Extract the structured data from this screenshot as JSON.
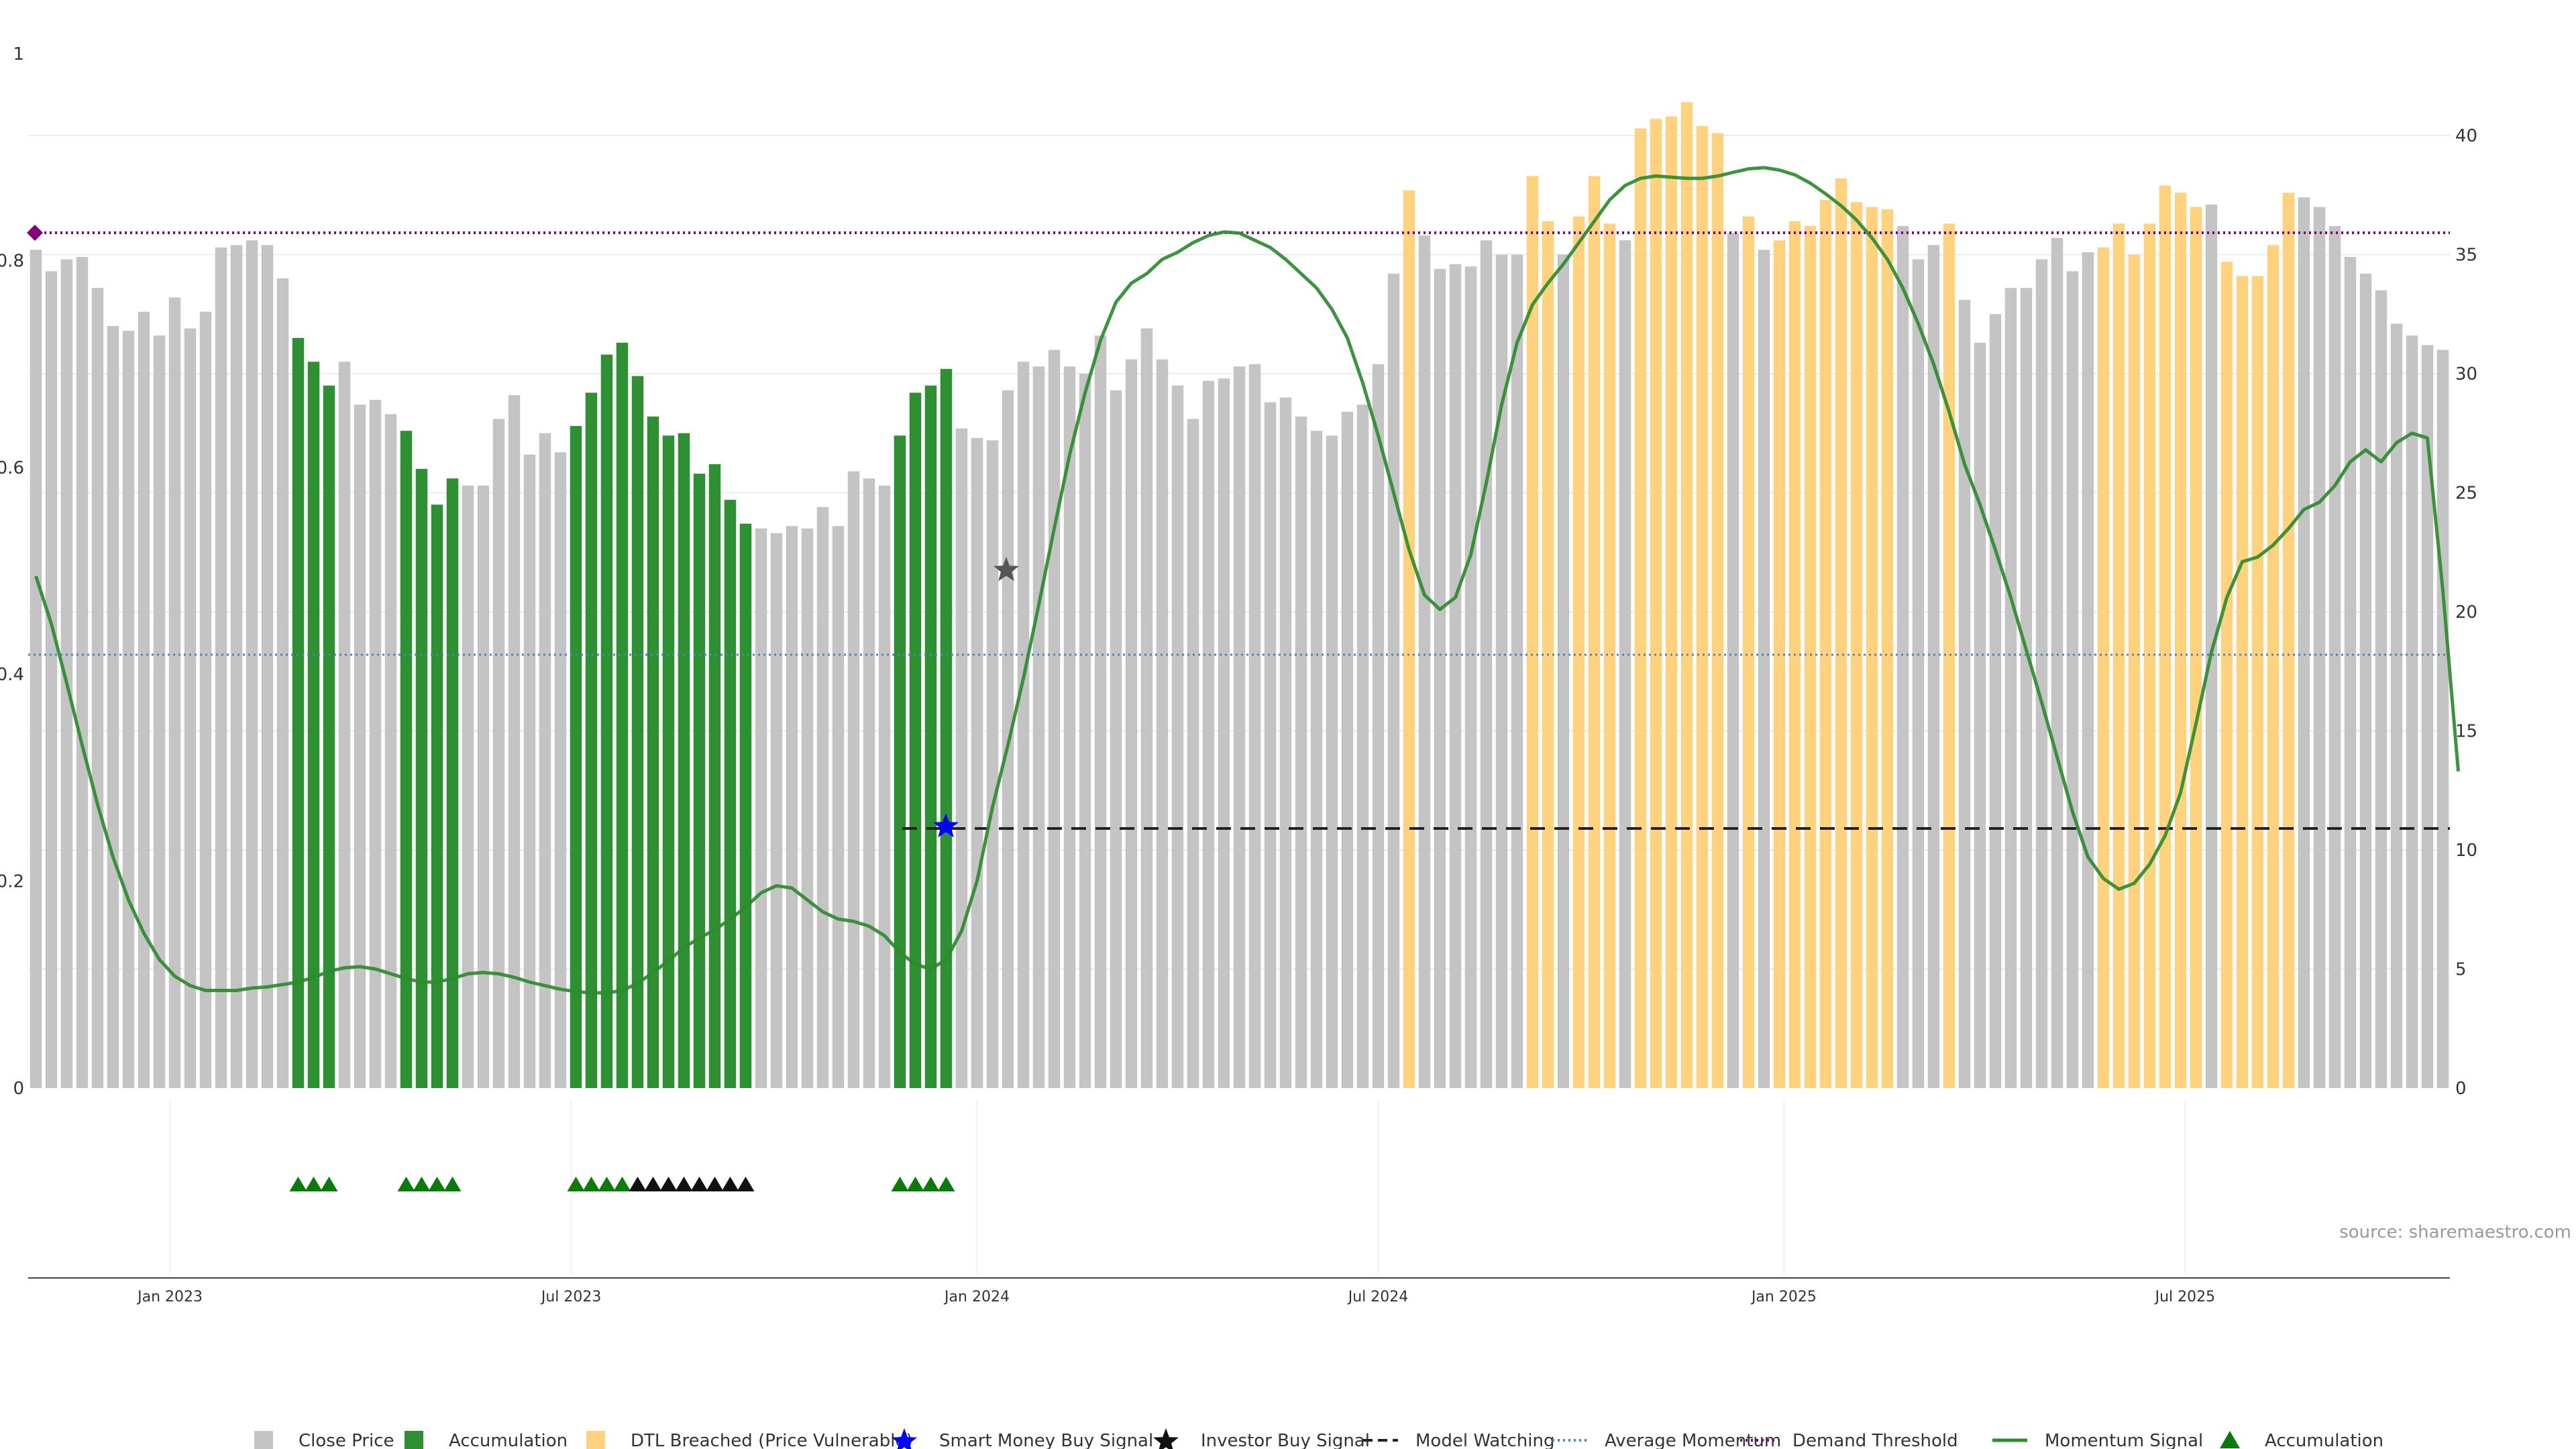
{
  "source_label": "source: sharemaestro.com",
  "colors": {
    "close": "#c4c4c4",
    "accumulation": "#2e9032",
    "dtl": "#ffd280",
    "smart": "#0000ff",
    "investor": "#111111",
    "watching": "#222222",
    "avg_momentum": "#4a86b8",
    "demand": "#800080",
    "momentum": "#2e8b2e",
    "acc_marker": "#0a7a0a"
  },
  "legend": [
    {
      "key": "close",
      "label": "Close Price",
      "marker": "square"
    },
    {
      "key": "accumulation",
      "label": "Accumulation",
      "marker": "square"
    },
    {
      "key": "dtl",
      "label": "DTL Breached (Price Vulnerable)",
      "marker": "square"
    },
    {
      "key": "smart",
      "label": "Smart Money Buy Signal",
      "marker": "star"
    },
    {
      "key": "investor",
      "label": "Investor Buy Signal",
      "marker": "star"
    },
    {
      "key": "watching",
      "label": "Model Watching",
      "marker": "dash"
    },
    {
      "key": "avg_momentum",
      "label": "Average Momentum",
      "marker": "dotted"
    },
    {
      "key": "demand",
      "label": "Demand Threshold",
      "marker": "dotted"
    },
    {
      "key": "momentum",
      "label": "Momentum Signal",
      "marker": "line"
    },
    {
      "key": "acc_marker",
      "label": "Accumulation",
      "marker": "triangle"
    }
  ],
  "chart_data": {
    "type": "bar",
    "left_axis": {
      "ticks": [
        "0",
        "0.2",
        "0.4",
        "0.6",
        "0.8",
        "1"
      ],
      "range": [
        0,
        1
      ]
    },
    "right_axis": {
      "ticks": [
        "0",
        "5",
        "10",
        "15",
        "20",
        "25",
        "30",
        "35",
        "40"
      ],
      "range": [
        0,
        43.6
      ]
    },
    "x_ticks": [
      "Jan 2023",
      "Jul 2023",
      "Jan 2024",
      "Jul 2024",
      "Jan 2025",
      "Jul 2025"
    ],
    "x_tick_index": [
      8.7,
      34.7,
      61.0,
      87.0,
      113.3,
      139.3
    ],
    "close_values": [
      35.2,
      34.3,
      34.8,
      34.9,
      33.6,
      32.0,
      31.8,
      32.6,
      31.6,
      33.2,
      31.9,
      32.6,
      35.3,
      35.4,
      35.6,
      35.4,
      34.0,
      31.5,
      30.5,
      29.5,
      30.5,
      28.7,
      28.9,
      28.3,
      27.6,
      26.0,
      24.5,
      25.6,
      25.3,
      25.3,
      28.1,
      29.1,
      26.6,
      27.5,
      26.7,
      27.8,
      29.2,
      30.8,
      31.3,
      29.9,
      28.2,
      27.4,
      27.5,
      25.8,
      26.2,
      24.7,
      23.7,
      23.5,
      23.3,
      23.6,
      23.5,
      24.4,
      23.6,
      25.9,
      25.6,
      25.3,
      27.4,
      29.2,
      29.5,
      30.2,
      27.7,
      27.3,
      27.2,
      29.3,
      30.5,
      30.3,
      31.0,
      30.3,
      30.0,
      31.6,
      29.3,
      30.6,
      31.9,
      30.6,
      29.5,
      28.1,
      29.7,
      29.8,
      30.3,
      30.4,
      28.8,
      29.0,
      28.2,
      27.6,
      27.4,
      28.4,
      28.7,
      30.4,
      34.2,
      37.7,
      35.8,
      34.4,
      34.6,
      34.5,
      35.6,
      35.0,
      35.0,
      38.3,
      36.4,
      35.0,
      36.6,
      38.3,
      36.3,
      35.6,
      40.3,
      40.7,
      40.8,
      41.4,
      40.4,
      40.1,
      35.9,
      36.6,
      35.2,
      35.6,
      36.4,
      36.2,
      37.3,
      38.2,
      37.2,
      37.0,
      36.9,
      36.2,
      34.8,
      35.4,
      36.3,
      33.1,
      31.3,
      32.5,
      33.6,
      33.6,
      34.8,
      35.7,
      34.3,
      35.1,
      35.3,
      36.3,
      35.0,
      36.3,
      37.9,
      37.6,
      37.0,
      37.1,
      34.7,
      34.1,
      34.1,
      35.4,
      37.6,
      37.4,
      37.0,
      36.2,
      34.9,
      34.2,
      33.5,
      32.1,
      31.6,
      31.2,
      31.0
    ],
    "accumulation_index": [
      17,
      18,
      19,
      24,
      25,
      26,
      27,
      35,
      36,
      37,
      38,
      39,
      40,
      41,
      42,
      43,
      44,
      45,
      46,
      56,
      57,
      58,
      59
    ],
    "dtl_index": [
      89,
      97,
      98,
      100,
      101,
      102,
      104,
      105,
      106,
      107,
      108,
      109,
      111,
      113,
      114,
      115,
      116,
      117,
      118,
      119,
      120,
      124,
      134,
      135,
      136,
      137,
      138,
      139,
      140,
      142,
      143,
      144,
      145,
      146
    ],
    "momentum_values": [
      21.5,
      19.5,
      17.0,
      14.4,
      11.9,
      9.7,
      7.9,
      6.5,
      5.4,
      4.7,
      4.3,
      4.1,
      4.1,
      4.1,
      4.2,
      4.25,
      4.35,
      4.45,
      4.65,
      4.9,
      5.05,
      5.1,
      5.0,
      4.8,
      4.6,
      4.45,
      4.45,
      4.6,
      4.8,
      4.85,
      4.8,
      4.65,
      4.45,
      4.3,
      4.15,
      4.05,
      4.0,
      4.0,
      4.1,
      4.4,
      4.85,
      5.35,
      5.9,
      6.3,
      6.65,
      7.1,
      7.6,
      8.2,
      8.5,
      8.4,
      7.9,
      7.4,
      7.1,
      7.0,
      6.8,
      6.4,
      5.7,
      5.2,
      5.0,
      5.4,
      6.6,
      8.7,
      11.8,
      14.4,
      17.2,
      20.3,
      23.5,
      26.6,
      29.2,
      31.4,
      33.0,
      33.8,
      34.2,
      34.8,
      35.1,
      35.5,
      35.8,
      35.95,
      35.9,
      35.6,
      35.3,
      34.8,
      34.2,
      33.6,
      32.7,
      31.5,
      29.6,
      27.4,
      25.0,
      22.6,
      20.7,
      20.1,
      20.6,
      22.4,
      25.4,
      28.7,
      31.3,
      32.9,
      33.8,
      34.6,
      35.5,
      36.4,
      37.3,
      37.9,
      38.2,
      38.3,
      38.25,
      38.2,
      38.2,
      38.3,
      38.45,
      38.6,
      38.65,
      38.55,
      38.35,
      38.0,
      37.55,
      37.05,
      36.45,
      35.7,
      34.8,
      33.6,
      32.1,
      30.4,
      28.4,
      26.2,
      24.5,
      22.6,
      20.6,
      18.4,
      16.2,
      13.9,
      11.6,
      9.7,
      8.8,
      8.35,
      8.6,
      9.4,
      10.6,
      12.4,
      15.3,
      18.3,
      20.6,
      22.1,
      22.3,
      22.8,
      23.5,
      24.3,
      24.6,
      25.3,
      26.3,
      26.8,
      26.3,
      27.1,
      27.5,
      27.3,
      20.9,
      13.3
    ]
  }
}
